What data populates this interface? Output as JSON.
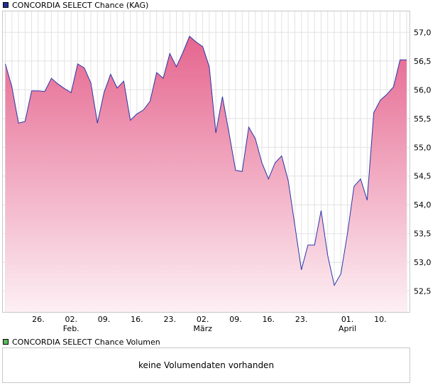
{
  "legend": {
    "price_label": "CONCORDIA SELECT Chance (KAG)",
    "price_color": "#1f2f99",
    "volume_label": "CONCORDIA SELECT Chance Volumen",
    "volume_color": "#5dbb5d"
  },
  "volume_box": {
    "message": "keine Volumendaten vorhanden"
  },
  "chart_data": {
    "type": "area",
    "title": "",
    "xlabel": "",
    "ylabel": "",
    "ylim": [
      52.125,
      57.375
    ],
    "y_ticks": [
      "52,5",
      "53,0",
      "53,5",
      "54,0",
      "54,5",
      "55,0",
      "55,5",
      "56,0",
      "56,5",
      "57,0"
    ],
    "y_tick_values": [
      52.5,
      53.0,
      53.5,
      54.0,
      54.5,
      55.0,
      55.5,
      56.0,
      56.5,
      57.0
    ],
    "x_ticks": [
      {
        "day": "26.",
        "month": "",
        "index": 5
      },
      {
        "day": "02.",
        "month": "Feb.",
        "index": 10
      },
      {
        "day": "09.",
        "month": "",
        "index": 15
      },
      {
        "day": "16.",
        "month": "",
        "index": 20
      },
      {
        "day": "23.",
        "month": "",
        "index": 25
      },
      {
        "day": "02.",
        "month": "März",
        "index": 30
      },
      {
        "day": "09.",
        "month": "",
        "index": 35
      },
      {
        "day": "16.",
        "month": "",
        "index": 40
      },
      {
        "day": "23.",
        "month": "",
        "index": 45
      },
      {
        "day": "01.",
        "month": "April",
        "index": 52
      },
      {
        "day": "10.",
        "month": "",
        "index": 57
      }
    ],
    "grid": true,
    "line_color": "#2b35a8",
    "fill_top_color": "#e5658f",
    "fill_bottom_color": "#fdf0f4",
    "series": [
      {
        "values": [
          56.45,
          56.05,
          55.42,
          55.45,
          55.98,
          55.98,
          55.97,
          56.2,
          56.1,
          56.02,
          55.95,
          56.45,
          56.38,
          56.12,
          55.42,
          55.95,
          56.27,
          56.03,
          56.15,
          55.47,
          55.58,
          55.65,
          55.8,
          56.3,
          56.2,
          56.63,
          56.4,
          56.65,
          56.93,
          56.83,
          56.75,
          56.4,
          55.25,
          55.88,
          55.25,
          54.6,
          54.58,
          55.35,
          55.15,
          54.73,
          54.45,
          54.73,
          54.85,
          54.42,
          53.65,
          52.87,
          53.3,
          53.3,
          53.9,
          53.12,
          52.6,
          52.8,
          53.5,
          54.32,
          54.45,
          54.08,
          55.6,
          55.82,
          55.92,
          56.05,
          56.52,
          56.52
        ]
      }
    ]
  }
}
